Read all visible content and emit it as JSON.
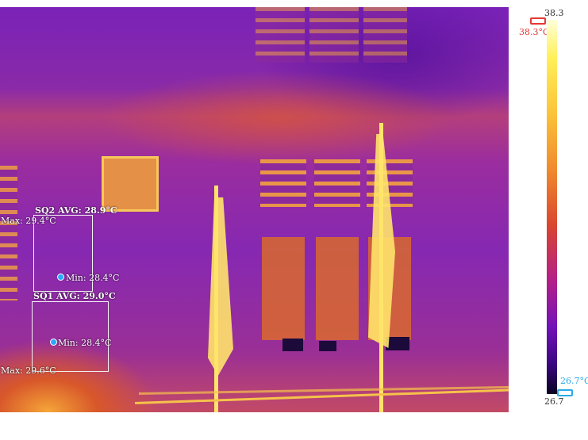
{
  "scale": {
    "max_value": "38.3",
    "min_value": "26.7",
    "max_marker": "38.3°C",
    "min_marker": "26.7°C",
    "max_color": "#e53935",
    "min_color": "#29a9e8"
  },
  "regions": [
    {
      "label": "SQ2 AVG: 28.9°C",
      "max": "Max: 29.4°C",
      "min": "Min: 28.4°C"
    },
    {
      "label": "SQ1 AVG: 29.0°C",
      "max": "Max: 29.6°C",
      "min": "Min: 28.4°C"
    }
  ]
}
